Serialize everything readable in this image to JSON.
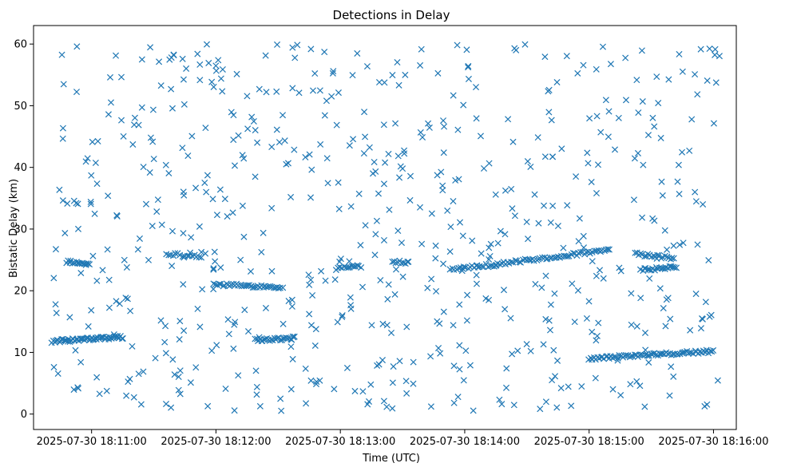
{
  "chart_data": {
    "type": "scatter",
    "title": "Detections in Delay",
    "xlabel": "Time (UTC)",
    "ylabel": "Bistatic Delay (km)",
    "marker": "x",
    "color": "#1f77b4",
    "xlim_seconds": [
      -28,
      311
    ],
    "ylim": [
      -2.5,
      63
    ],
    "x_unit": "seconds after 2025-07-30 18:11:00",
    "xticks": [
      {
        "value": 0,
        "label": "2025-07-30 18:11:00"
      },
      {
        "value": 60,
        "label": "2025-07-30 18:12:00"
      },
      {
        "value": 120,
        "label": "2025-07-30 18:13:00"
      },
      {
        "value": 180,
        "label": "2025-07-30 18:14:00"
      },
      {
        "value": 240,
        "label": "2025-07-30 18:15:00"
      },
      {
        "value": 300,
        "label": "2025-07-30 18:16:00"
      }
    ],
    "yticks": [
      {
        "value": 0,
        "label": "0"
      },
      {
        "value": 10,
        "label": "10"
      },
      {
        "value": 20,
        "label": "20"
      },
      {
        "value": 30,
        "label": "30"
      },
      {
        "value": 40,
        "label": "40"
      },
      {
        "value": 50,
        "label": "50"
      },
      {
        "value": 60,
        "label": "60"
      }
    ],
    "tracks": [
      {
        "name": "track-a",
        "t_start": -19,
        "t_end": 15,
        "y_start": 11.8,
        "y_end": 12.5,
        "count": 60
      },
      {
        "name": "track-b",
        "t_start": -12,
        "t_end": -1,
        "y_start": 24.7,
        "y_end": 24.3,
        "count": 18
      },
      {
        "name": "track-c",
        "t_start": 36,
        "t_end": 53,
        "y_start": 26.0,
        "y_end": 25.6,
        "count": 16
      },
      {
        "name": "track-d",
        "t_start": 59,
        "t_end": 92,
        "y_start": 21.0,
        "y_end": 20.6,
        "count": 40
      },
      {
        "name": "track-e",
        "t_start": 79,
        "t_end": 98,
        "y_start": 12.0,
        "y_end": 12.3,
        "count": 28
      },
      {
        "name": "track-f",
        "t_start": 118,
        "t_end": 130,
        "y_start": 23.6,
        "y_end": 24.0,
        "count": 14
      },
      {
        "name": "track-g",
        "t_start": 145,
        "t_end": 153,
        "y_start": 24.8,
        "y_end": 24.6,
        "count": 10
      },
      {
        "name": "track-h",
        "t_start": 173,
        "t_end": 195,
        "y_start": 23.6,
        "y_end": 24.2,
        "count": 24
      },
      {
        "name": "track-i",
        "t_start": 195,
        "t_end": 250,
        "y_start": 24.3,
        "y_end": 26.6,
        "count": 60
      },
      {
        "name": "track-j",
        "t_start": 262,
        "t_end": 281,
        "y_start": 26.0,
        "y_end": 25.2,
        "count": 22
      },
      {
        "name": "track-k",
        "t_start": 265,
        "t_end": 282,
        "y_start": 23.4,
        "y_end": 23.8,
        "count": 22
      },
      {
        "name": "track-l",
        "t_start": 240,
        "t_end": 300,
        "y_start": 9.0,
        "y_end": 10.2,
        "count": 75
      }
    ],
    "scattered_points": {
      "t_range": [
        -20,
        303
      ],
      "y_range": [
        0.5,
        60
      ],
      "count": 640,
      "seed": 12345
    }
  }
}
